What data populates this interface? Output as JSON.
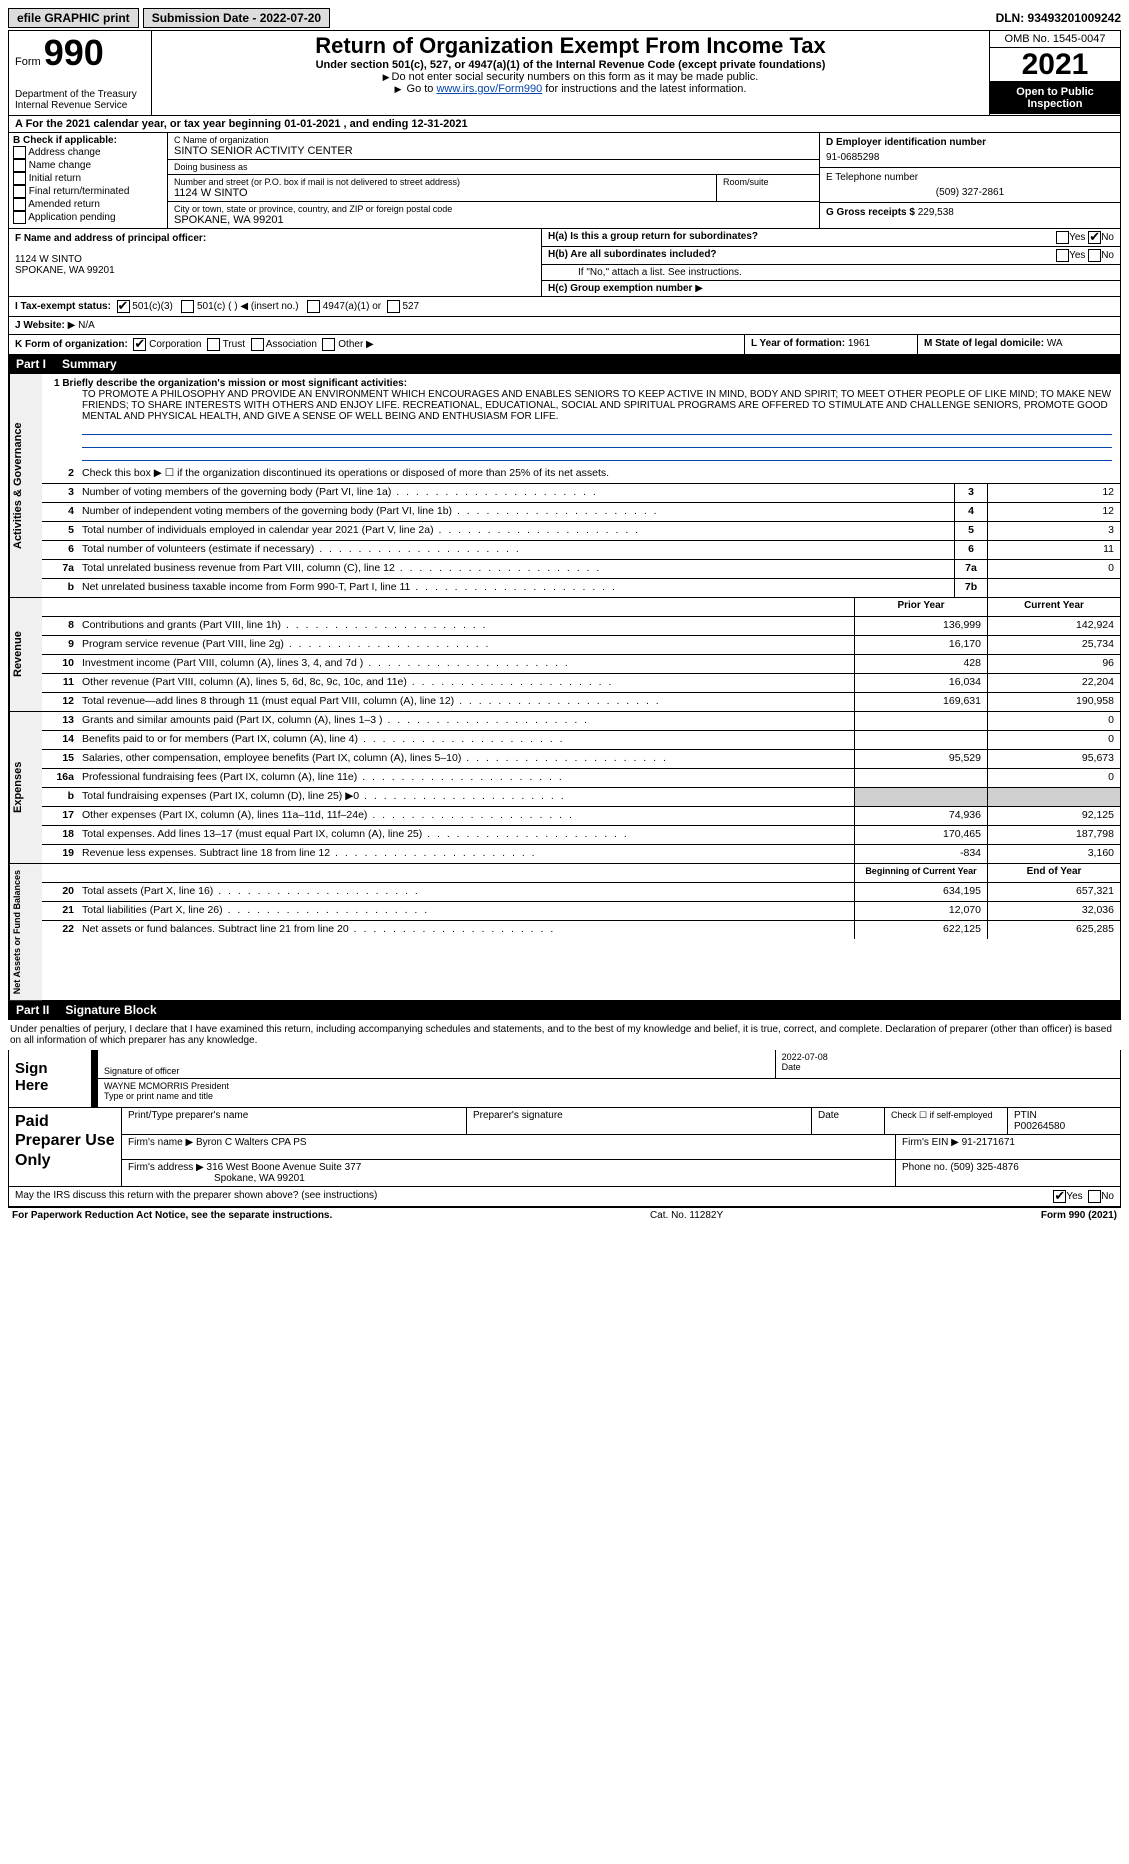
{
  "topbar": {
    "efile": "efile GRAPHIC print",
    "submission": "Submission Date - 2022-07-20",
    "dln": "DLN: 93493201009242"
  },
  "header": {
    "form_label": "Form",
    "form_num": "990",
    "dept": "Department of the Treasury",
    "irs": "Internal Revenue Service",
    "title": "Return of Organization Exempt From Income Tax",
    "under": "Under section 501(c), 527, or 4947(a)(1) of the Internal Revenue Code (except private foundations)",
    "do_not": "Do not enter social security numbers on this form as it may be made public.",
    "goto_pre": "Go to ",
    "goto_link": "www.irs.gov/Form990",
    "goto_post": " for instructions and the latest information.",
    "omb": "OMB No. 1545-0047",
    "year": "2021",
    "open": "Open to Public Inspection"
  },
  "row_a": "A For the 2021 calendar year, or tax year beginning 01-01-2021    , and ending 12-31-2021",
  "b": {
    "label": "B Check if applicable:",
    "address": "Address change",
    "name": "Name change",
    "initial": "Initial return",
    "final": "Final return/terminated",
    "amended": "Amended return",
    "app": "Application pending"
  },
  "c": {
    "name_label": "C Name of organization",
    "name": "SINTO SENIOR ACTIVITY CENTER",
    "dba_label": "Doing business as",
    "dba": "",
    "street_label": "Number and street (or P.O. box if mail is not delivered to street address)",
    "street": "1124 W SINTO",
    "room_label": "Room/suite",
    "city_label": "City or town, state or province, country, and ZIP or foreign postal code",
    "city": "SPOKANE, WA  99201"
  },
  "d": {
    "ein_label": "D Employer identification number",
    "ein": "91-0685298",
    "phone_label": "E Telephone number",
    "phone": "(509) 327-2861",
    "gross_label": "G Gross receipts $",
    "gross": "229,538"
  },
  "f": {
    "label": "F  Name and address of principal officer:",
    "line1": "1124 W SINTO",
    "line2": "SPOKANE, WA  99201"
  },
  "h": {
    "a": "H(a)  Is this a group return for subordinates?",
    "b": "H(b)  Are all subordinates included?",
    "ifno": "If \"No,\" attach a list. See instructions.",
    "c_label": "H(c)  Group exemption number",
    "yes": "Yes",
    "no": "No"
  },
  "i": {
    "label": "I  Tax-exempt status:",
    "o1": "501(c)(3)",
    "o2": "501(c) (  )",
    "insert": "(insert no.)",
    "o3": "4947(a)(1) or",
    "o4": "527"
  },
  "j": {
    "label": "J  Website:",
    "val": "N/A"
  },
  "k": {
    "label": "K Form of organization:",
    "corp": "Corporation",
    "trust": "Trust",
    "assoc": "Association",
    "other": "Other"
  },
  "l": {
    "label": "L Year of formation:",
    "val": "1961"
  },
  "m": {
    "label": "M State of legal domicile:",
    "val": "WA"
  },
  "part1": {
    "label": "Part I",
    "title": "Summary"
  },
  "mission": {
    "l1": "1  Briefly describe the organization's mission or most significant activities:",
    "txt": "TO PROMOTE A PHILOSOPHY AND PROVIDE AN ENVIRONMENT WHICH ENCOURAGES AND ENABLES SENIORS TO KEEP ACTIVE IN MIND, BODY AND SPIRIT; TO MEET OTHER PEOPLE OF LIKE MIND; TO MAKE NEW FRIENDS; TO SHARE INTERESTS WITH OTHERS AND ENJOY LIFE. RECREATIONAL, EDUCATIONAL, SOCIAL AND SPIRITUAL PROGRAMS ARE OFFERED TO STIMULATE AND CHALLENGE SENIORS, PROMOTE GOOD MENTAL AND PHYSICAL HEALTH, AND GIVE A SENSE OF WELL BEING AND ENTHUSIASM FOR LIFE."
  },
  "vtabs": {
    "gov": "Activities & Governance",
    "rev": "Revenue",
    "exp": "Expenses",
    "net": "Net Assets or Fund Balances"
  },
  "lines_gov": [
    {
      "n": "2",
      "t": "Check this box ▶ ☐ if the organization discontinued its operations or disposed of more than 25% of its net assets.",
      "box": "",
      "v": ""
    },
    {
      "n": "3",
      "t": "Number of voting members of the governing body (Part VI, line 1a)",
      "box": "3",
      "v": "12"
    },
    {
      "n": "4",
      "t": "Number of independent voting members of the governing body (Part VI, line 1b)",
      "box": "4",
      "v": "12"
    },
    {
      "n": "5",
      "t": "Total number of individuals employed in calendar year 2021 (Part V, line 2a)",
      "box": "5",
      "v": "3"
    },
    {
      "n": "6",
      "t": "Total number of volunteers (estimate if necessary)",
      "box": "6",
      "v": "11"
    },
    {
      "n": "7a",
      "t": "Total unrelated business revenue from Part VIII, column (C), line 12",
      "box": "7a",
      "v": "0"
    },
    {
      "n": "b",
      "t": "Net unrelated business taxable income from Form 990-T, Part I, line 11",
      "box": "7b",
      "v": ""
    }
  ],
  "hdr_py": "Prior Year",
  "hdr_cy": "Current Year",
  "lines_rev": [
    {
      "n": "8",
      "t": "Contributions and grants (Part VIII, line 1h)",
      "py": "136,999",
      "cy": "142,924"
    },
    {
      "n": "9",
      "t": "Program service revenue (Part VIII, line 2g)",
      "py": "16,170",
      "cy": "25,734"
    },
    {
      "n": "10",
      "t": "Investment income (Part VIII, column (A), lines 3, 4, and 7d )",
      "py": "428",
      "cy": "96"
    },
    {
      "n": "11",
      "t": "Other revenue (Part VIII, column (A), lines 5, 6d, 8c, 9c, 10c, and 11e)",
      "py": "16,034",
      "cy": "22,204"
    },
    {
      "n": "12",
      "t": "Total revenue—add lines 8 through 11 (must equal Part VIII, column (A), line 12)",
      "py": "169,631",
      "cy": "190,958"
    }
  ],
  "lines_exp": [
    {
      "n": "13",
      "t": "Grants and similar amounts paid (Part IX, column (A), lines 1–3 )",
      "py": "",
      "cy": "0"
    },
    {
      "n": "14",
      "t": "Benefits paid to or for members (Part IX, column (A), line 4)",
      "py": "",
      "cy": "0"
    },
    {
      "n": "15",
      "t": "Salaries, other compensation, employee benefits (Part IX, column (A), lines 5–10)",
      "py": "95,529",
      "cy": "95,673"
    },
    {
      "n": "16a",
      "t": "Professional fundraising fees (Part IX, column (A), line 11e)",
      "py": "",
      "cy": "0"
    },
    {
      "n": "b",
      "t": "Total fundraising expenses (Part IX, column (D), line 25) ▶0",
      "py": "grey",
      "cy": "grey"
    },
    {
      "n": "17",
      "t": "Other expenses (Part IX, column (A), lines 11a–11d, 11f–24e)",
      "py": "74,936",
      "cy": "92,125"
    },
    {
      "n": "18",
      "t": "Total expenses. Add lines 13–17 (must equal Part IX, column (A), line 25)",
      "py": "170,465",
      "cy": "187,798"
    },
    {
      "n": "19",
      "t": "Revenue less expenses. Subtract line 18 from line 12",
      "py": "-834",
      "cy": "3,160"
    }
  ],
  "hdr_boy": "Beginning of Current Year",
  "hdr_eoy": "End of Year",
  "lines_net": [
    {
      "n": "20",
      "t": "Total assets (Part X, line 16)",
      "py": "634,195",
      "cy": "657,321"
    },
    {
      "n": "21",
      "t": "Total liabilities (Part X, line 26)",
      "py": "12,070",
      "cy": "32,036"
    },
    {
      "n": "22",
      "t": "Net assets or fund balances. Subtract line 21 from line 20",
      "py": "622,125",
      "cy": "625,285"
    }
  ],
  "part2": {
    "label": "Part II",
    "title": "Signature Block"
  },
  "perjury": "Under penalties of perjury, I declare that I have examined this return, including accompanying schedules and statements, and to the best of my knowledge and belief, it is true, correct, and complete. Declaration of preparer (other than officer) is based on all information of which preparer has any knowledge.",
  "sign": {
    "label": "Sign Here",
    "sig_of": "Signature of officer",
    "date_lbl": "Date",
    "date": "2022-07-08",
    "name": "WAYNE MCMORRIS President",
    "type_lbl": "Type or print name and title"
  },
  "prep": {
    "label": "Paid Preparer Use Only",
    "pt_name": "Print/Type preparer's name",
    "sig": "Preparer's signature",
    "date_lbl": "Date",
    "check_lbl": "Check ☐ if self-employed",
    "ptin_lbl": "PTIN",
    "ptin": "P00264580",
    "firm_name_lbl": "Firm's name   ▶",
    "firm_name": "Byron C Walters CPA PS",
    "firm_ein_lbl": "Firm's EIN ▶",
    "firm_ein": "91-2171671",
    "firm_addr_lbl": "Firm's address ▶",
    "firm_addr1": "316 West Boone Avenue Suite 377",
    "firm_addr2": "Spokane, WA  99201",
    "phone_lbl": "Phone no.",
    "phone": "(509) 325-4876"
  },
  "may": {
    "txt": "May the IRS discuss this return with the preparer shown above? (see instructions)",
    "yes": "Yes",
    "no": "No"
  },
  "footer": {
    "pra": "For Paperwork Reduction Act Notice, see the separate instructions.",
    "cat": "Cat. No. 11282Y",
    "form": "Form 990 (2021)"
  }
}
